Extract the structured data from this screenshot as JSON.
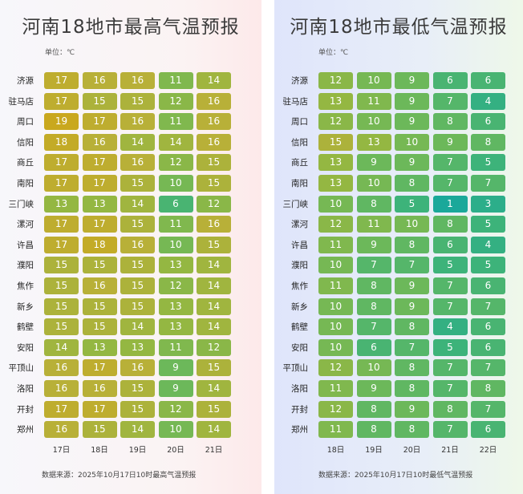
{
  "high": {
    "title": "河南18地市最高气温预报",
    "unit_label": "单位：℃",
    "source": "数据来源：2025年10月17日10时最高气温预报",
    "days": [
      "17日",
      "18日",
      "19日",
      "20日",
      "21日"
    ],
    "cities": [
      "济源",
      "驻马店",
      "周口",
      "信阳",
      "商丘",
      "南阳",
      "三门峡",
      "漯河",
      "许昌",
      "濮阳",
      "焦作",
      "新乡",
      "鹤壁",
      "安阳",
      "平顶山",
      "洛阳",
      "开封",
      "郑州"
    ],
    "values": [
      [
        17,
        16,
        16,
        11,
        14
      ],
      [
        17,
        15,
        15,
        12,
        16
      ],
      [
        19,
        17,
        16,
        11,
        16
      ],
      [
        18,
        16,
        14,
        14,
        16
      ],
      [
        17,
        17,
        16,
        12,
        15
      ],
      [
        17,
        17,
        15,
        10,
        15
      ],
      [
        13,
        13,
        14,
        6,
        12
      ],
      [
        17,
        17,
        15,
        11,
        16
      ],
      [
        17,
        18,
        16,
        10,
        15
      ],
      [
        15,
        15,
        15,
        13,
        14
      ],
      [
        15,
        16,
        15,
        12,
        14
      ],
      [
        15,
        15,
        15,
        13,
        14
      ],
      [
        15,
        15,
        14,
        13,
        14
      ],
      [
        14,
        13,
        13,
        11,
        12
      ],
      [
        16,
        17,
        16,
        9,
        15
      ],
      [
        16,
        16,
        15,
        9,
        14
      ],
      [
        17,
        17,
        15,
        12,
        15
      ],
      [
        16,
        15,
        14,
        10,
        14
      ]
    ]
  },
  "low": {
    "title": "河南18地市最低气温预报",
    "unit_label": "单位：℃",
    "source": "数据来源：2025年10月17日10时最低气温预报",
    "days": [
      "18日",
      "19日",
      "20日",
      "21日",
      "22日"
    ],
    "cities": [
      "济源",
      "驻马店",
      "周口",
      "信阳",
      "商丘",
      "南阳",
      "三门峡",
      "漯河",
      "许昌",
      "濮阳",
      "焦作",
      "新乡",
      "鹤壁",
      "安阳",
      "平顶山",
      "洛阳",
      "开封",
      "郑州"
    ],
    "values": [
      [
        12,
        10,
        9,
        6,
        6
      ],
      [
        13,
        11,
        9,
        7,
        4
      ],
      [
        12,
        10,
        9,
        8,
        6
      ],
      [
        15,
        13,
        10,
        9,
        8
      ],
      [
        13,
        9,
        9,
        7,
        5
      ],
      [
        13,
        10,
        8,
        7,
        7
      ],
      [
        10,
        8,
        5,
        1,
        3
      ],
      [
        12,
        11,
        10,
        8,
        5
      ],
      [
        11,
        9,
        8,
        6,
        4
      ],
      [
        10,
        7,
        7,
        5,
        5
      ],
      [
        11,
        8,
        9,
        7,
        6
      ],
      [
        10,
        8,
        9,
        7,
        7
      ],
      [
        10,
        7,
        8,
        4,
        6
      ],
      [
        10,
        6,
        7,
        5,
        6
      ],
      [
        12,
        10,
        8,
        7,
        7
      ],
      [
        11,
        9,
        8,
        7,
        8
      ],
      [
        12,
        8,
        9,
        8,
        7
      ],
      [
        11,
        8,
        8,
        7,
        6
      ]
    ]
  },
  "chart_data": [
    {
      "type": "heatmap",
      "title": "河南18地市最高气温预报",
      "unit": "℃",
      "x": [
        "17日",
        "18日",
        "19日",
        "20日",
        "21日"
      ],
      "y": [
        "济源",
        "驻马店",
        "周口",
        "信阳",
        "商丘",
        "南阳",
        "三门峡",
        "漯河",
        "许昌",
        "濮阳",
        "焦作",
        "新乡",
        "鹤壁",
        "安阳",
        "平顶山",
        "洛阳",
        "开封",
        "郑州"
      ]
    },
    {
      "type": "heatmap",
      "title": "河南18地市最低气温预报",
      "unit": "℃",
      "x": [
        "18日",
        "19日",
        "20日",
        "21日",
        "22日"
      ],
      "y": [
        "济源",
        "驻马店",
        "周口",
        "信阳",
        "商丘",
        "南阳",
        "三门峡",
        "漯河",
        "许昌",
        "濮阳",
        "焦作",
        "新乡",
        "鹤壁",
        "安阳",
        "平顶山",
        "洛阳",
        "开封",
        "郑州"
      ]
    }
  ],
  "colors": {
    "scale": [
      "#1aa89a",
      "#3db37a",
      "#6cb85a",
      "#94b742",
      "#b8b038",
      "#c9a81e"
    ]
  }
}
